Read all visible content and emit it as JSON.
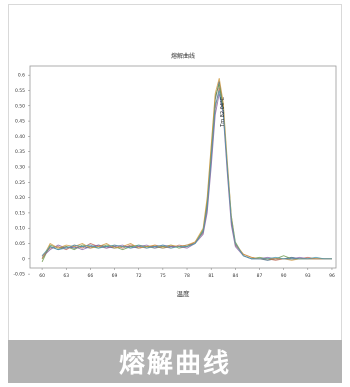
{
  "caption": "熔解曲线",
  "chart_data": {
    "type": "line",
    "title": "熔解曲线",
    "xlabel": "温度",
    "ylabel": "",
    "xlim": [
      58.5,
      96.5
    ],
    "ylim": [
      -0.03,
      0.63
    ],
    "x_ticks": [
      60,
      63,
      66,
      69,
      72,
      75,
      78,
      81,
      84,
      87,
      90,
      93,
      96
    ],
    "y_ticks": [
      -0.05,
      0,
      0.05,
      0.1,
      0.15,
      0.2,
      0.25,
      0.3,
      0.35,
      0.4,
      0.45,
      0.5,
      0.55,
      0.6
    ],
    "y_tick_labels": [
      "-0.05",
      "0",
      "0.05",
      "0.10",
      "0.15",
      "0.20",
      "0.25",
      "0.30",
      "0.35",
      "0.40",
      "0.45",
      "0.50",
      "0.55",
      "0.6"
    ],
    "peak_annotation": "Tm 82.04°C",
    "peak_x": 82.0,
    "series_colors": [
      "#3a5f7d",
      "#c06a5a",
      "#6e9a4e",
      "#8a6aa8",
      "#d09a42",
      "#4a9ab0",
      "#a04a6a",
      "#5a7a3a",
      "#7a7a7a",
      "#2a8a8a"
    ],
    "series": [
      {
        "x": [
          60,
          61,
          62,
          63,
          64,
          65,
          66,
          67,
          68,
          69,
          70,
          71,
          72,
          73,
          74,
          75,
          76,
          77,
          78,
          79,
          80,
          80.5,
          81,
          81.5,
          82,
          82.5,
          83,
          83.5,
          84,
          85,
          86,
          87,
          88,
          89,
          90,
          91,
          92,
          93,
          94,
          95,
          96
        ],
        "y": [
          0.0,
          0.04,
          0.03,
          0.04,
          0.035,
          0.04,
          0.035,
          0.045,
          0.04,
          0.035,
          0.04,
          0.04,
          0.035,
          0.04,
          0.04,
          0.035,
          0.04,
          0.04,
          0.045,
          0.05,
          0.09,
          0.18,
          0.35,
          0.52,
          0.58,
          0.5,
          0.3,
          0.13,
          0.05,
          0.01,
          0.0,
          0.0,
          -0.005,
          0.0,
          0.0,
          0.005,
          0.0,
          0.0,
          0.0,
          0.0,
          0.0
        ]
      },
      {
        "x": [
          60,
          61,
          62,
          63,
          64,
          65,
          66,
          67,
          68,
          69,
          70,
          71,
          72,
          73,
          74,
          75,
          76,
          77,
          78,
          79,
          80,
          80.5,
          81,
          81.5,
          82,
          82.5,
          83,
          83.5,
          84,
          85,
          86,
          87,
          88,
          89,
          90,
          91,
          92,
          93,
          94,
          95,
          96
        ],
        "y": [
          0.01,
          0.035,
          0.04,
          0.03,
          0.045,
          0.035,
          0.05,
          0.04,
          0.035,
          0.045,
          0.035,
          0.045,
          0.04,
          0.035,
          0.045,
          0.04,
          0.035,
          0.045,
          0.04,
          0.055,
          0.085,
          0.16,
          0.32,
          0.49,
          0.56,
          0.48,
          0.29,
          0.12,
          0.045,
          0.015,
          0.005,
          0.0,
          0.0,
          -0.005,
          0.0,
          0.0,
          0.0,
          0.005,
          0.0,
          0.0,
          0.0
        ]
      },
      {
        "x": [
          60,
          61,
          62,
          63,
          64,
          65,
          66,
          67,
          68,
          69,
          70,
          71,
          72,
          73,
          74,
          75,
          76,
          77,
          78,
          79,
          80,
          80.5,
          81,
          81.5,
          82,
          82.5,
          83,
          83.5,
          84,
          85,
          86,
          87,
          88,
          89,
          90,
          91,
          92,
          93,
          94,
          95,
          96
        ],
        "y": [
          -0.01,
          0.045,
          0.035,
          0.04,
          0.03,
          0.045,
          0.04,
          0.035,
          0.045,
          0.04,
          0.03,
          0.04,
          0.045,
          0.04,
          0.035,
          0.04,
          0.045,
          0.035,
          0.04,
          0.05,
          0.095,
          0.19,
          0.36,
          0.53,
          0.57,
          0.49,
          0.31,
          0.14,
          0.055,
          0.01,
          0.0,
          0.005,
          0.0,
          0.0,
          0.01,
          0.0,
          0.0,
          0.0,
          0.0,
          0.0,
          0.0
        ]
      },
      {
        "x": [
          60,
          61,
          62,
          63,
          64,
          65,
          66,
          67,
          68,
          69,
          70,
          71,
          72,
          73,
          74,
          75,
          76,
          77,
          78,
          79,
          80,
          80.5,
          81,
          81.5,
          82,
          82.5,
          83,
          83.5,
          84,
          85,
          86,
          87,
          88,
          89,
          90,
          91,
          92,
          93,
          94,
          95,
          96
        ],
        "y": [
          0.005,
          0.03,
          0.045,
          0.035,
          0.04,
          0.03,
          0.04,
          0.045,
          0.035,
          0.04,
          0.045,
          0.035,
          0.04,
          0.045,
          0.035,
          0.045,
          0.04,
          0.04,
          0.035,
          0.05,
          0.08,
          0.15,
          0.3,
          0.47,
          0.54,
          0.47,
          0.28,
          0.11,
          0.04,
          0.01,
          0.0,
          0.0,
          0.005,
          0.0,
          0.0,
          0.0,
          0.005,
          0.0,
          0.0,
          0.0,
          0.0
        ]
      },
      {
        "x": [
          60,
          61,
          62,
          63,
          64,
          65,
          66,
          67,
          68,
          69,
          70,
          71,
          72,
          73,
          74,
          75,
          76,
          77,
          78,
          79,
          80,
          80.5,
          81,
          81.5,
          82,
          82.5,
          83,
          83.5,
          84,
          85,
          86,
          87,
          88,
          89,
          90,
          91,
          92,
          93,
          94,
          95,
          96
        ],
        "y": [
          0.0,
          0.05,
          0.035,
          0.045,
          0.04,
          0.05,
          0.035,
          0.04,
          0.05,
          0.035,
          0.04,
          0.05,
          0.035,
          0.04,
          0.045,
          0.035,
          0.045,
          0.04,
          0.045,
          0.055,
          0.1,
          0.2,
          0.37,
          0.54,
          0.59,
          0.51,
          0.32,
          0.14,
          0.05,
          0.015,
          0.005,
          0.0,
          0.0,
          0.0,
          0.0,
          -0.005,
          0.0,
          0.0,
          0.0,
          0.0,
          0.0
        ]
      },
      {
        "x": [
          60,
          61,
          62,
          63,
          64,
          65,
          66,
          67,
          68,
          69,
          70,
          71,
          72,
          73,
          74,
          75,
          76,
          77,
          78,
          79,
          80,
          80.5,
          81,
          81.5,
          82,
          82.5,
          83,
          83.5,
          84,
          85,
          86,
          87,
          88,
          89,
          90,
          91,
          92,
          93,
          94,
          95,
          96
        ],
        "y": [
          0.01,
          0.04,
          0.03,
          0.035,
          0.045,
          0.04,
          0.045,
          0.035,
          0.04,
          0.045,
          0.04,
          0.035,
          0.045,
          0.035,
          0.04,
          0.045,
          0.035,
          0.04,
          0.04,
          0.05,
          0.09,
          0.17,
          0.33,
          0.5,
          0.55,
          0.48,
          0.3,
          0.13,
          0.05,
          0.01,
          0.0,
          0.0,
          0.0,
          0.005,
          0.0,
          0.0,
          0.0,
          0.0,
          0.005,
          0.0,
          0.0
        ]
      }
    ]
  }
}
